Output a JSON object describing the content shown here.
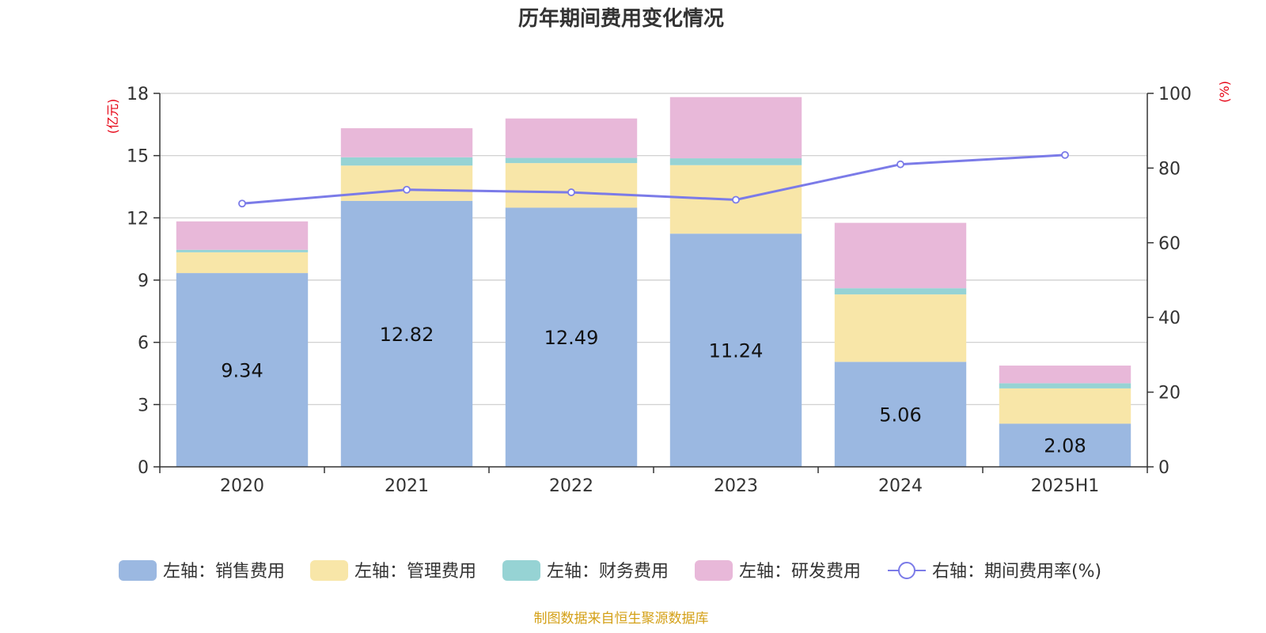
{
  "chart_data": {
    "type": "bar",
    "stacked": true,
    "title": "历年期间费用变化情况",
    "categories": [
      "2020",
      "2021",
      "2022",
      "2023",
      "2024",
      "2025H1"
    ],
    "left_axis": {
      "unit": "(亿元)",
      "ylim": [
        0,
        18
      ],
      "ticks": [
        "0",
        "3",
        "6",
        "9",
        "12",
        "15",
        "18"
      ]
    },
    "right_axis": {
      "unit": "(%)",
      "ylim": [
        0,
        100
      ],
      "ticks": [
        "0",
        "20",
        "40",
        "60",
        "80",
        "100"
      ]
    },
    "series": [
      {
        "name": "左轴：销售费用",
        "axis": "left",
        "color": "#9bb8e1",
        "values": [
          9.34,
          12.82,
          12.49,
          11.24,
          5.06,
          2.08
        ],
        "labels": [
          "9.34",
          "12.82",
          "12.49",
          "11.24",
          "5.06",
          "2.08"
        ]
      },
      {
        "name": "左轴：管理费用",
        "axis": "left",
        "color": "#f8e6a8",
        "values": [
          1.0,
          1.7,
          2.15,
          3.3,
          3.25,
          1.7
        ]
      },
      {
        "name": "左轴：财务费用",
        "axis": "left",
        "color": "#96d3d4",
        "values": [
          0.12,
          0.4,
          0.25,
          0.33,
          0.3,
          0.25
        ]
      },
      {
        "name": "左轴：研发费用",
        "axis": "left",
        "color": "#e8b8d9",
        "values": [
          1.37,
          1.4,
          1.9,
          2.95,
          3.15,
          0.85
        ]
      },
      {
        "name": "右轴：期间费用率(%)",
        "axis": "right",
        "type": "line",
        "color": "#7b7be8",
        "values": [
          70.5,
          74.2,
          73.5,
          71.5,
          81.0,
          83.5
        ]
      }
    ],
    "grid": true,
    "legend": "bottom"
  },
  "source": "制图数据来自恒生聚源数据库"
}
